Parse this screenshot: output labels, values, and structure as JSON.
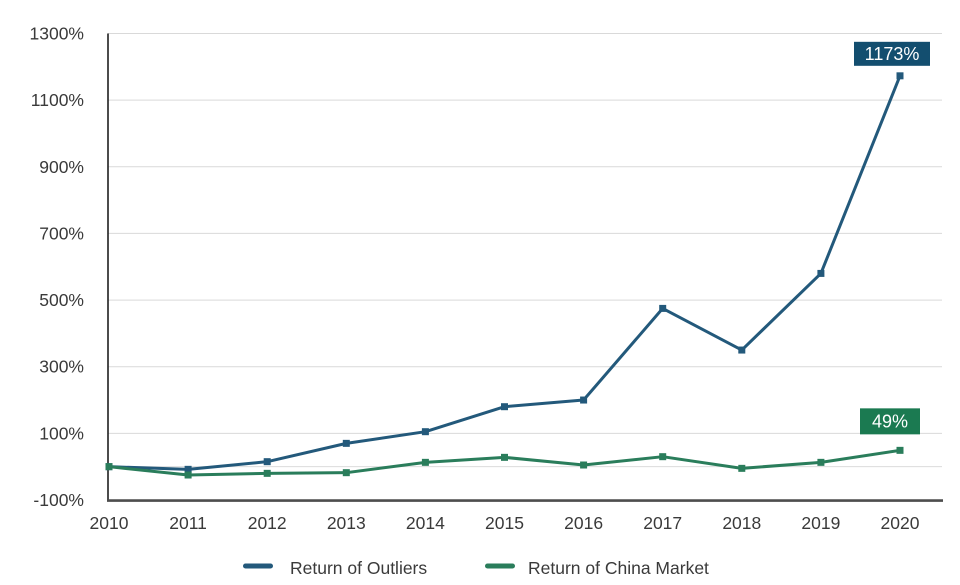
{
  "chart_data": {
    "type": "line",
    "title": "",
    "x": [
      "2010",
      "2011",
      "2012",
      "2013",
      "2014",
      "2015",
      "2016",
      "2017",
      "2018",
      "2019",
      "2020"
    ],
    "series": [
      {
        "name": "Return of Outliers",
        "color": "#23597B",
        "values": [
          0,
          -8,
          15,
          70,
          105,
          180,
          200,
          475,
          350,
          580,
          1173
        ]
      },
      {
        "name": "Return of China Market",
        "color": "#2A7D5B",
        "values": [
          0,
          -25,
          -20,
          -18,
          13,
          28,
          5,
          30,
          -5,
          13,
          49
        ]
      }
    ],
    "annotations": [
      {
        "series": 0,
        "x": "2020",
        "text": "1173%",
        "bg": "#134E6F",
        "text_color": "#FFFFFF"
      },
      {
        "series": 1,
        "x": "2020",
        "text": "49%",
        "bg": "#1B7A51",
        "text_color": "#FFFFFF"
      }
    ],
    "ylim": [
      -100,
      1300
    ],
    "yticks": [
      1300,
      1100,
      900,
      700,
      500,
      300,
      100,
      -100
    ],
    "ytick_suffix": "%",
    "zero_line_value": 0,
    "grid": true,
    "grid_color": "#D9D9D9",
    "zero_line_color": "#DCDCDC",
    "axis_line_color": "#1F1F1F",
    "baseline_color": "#4D4D4D",
    "axis_text_color": "#3A3A3A",
    "legend_position": "bottom-center",
    "marker": "square"
  }
}
